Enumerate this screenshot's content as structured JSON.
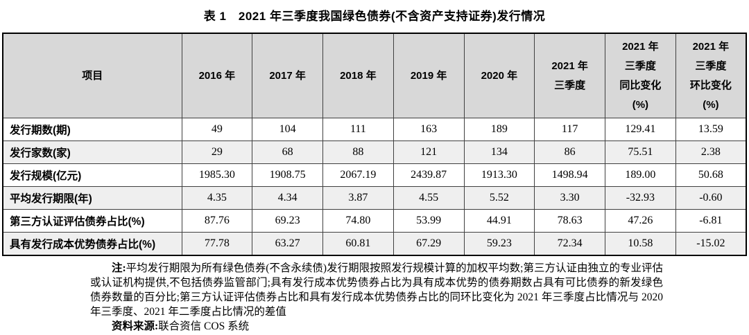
{
  "title": "表 1　2021 年三季度我国绿色债券(不含资产支持证券)发行情况",
  "table": {
    "columns": [
      [
        "项目"
      ],
      [
        "2016 年"
      ],
      [
        "2017 年"
      ],
      [
        "2018 年"
      ],
      [
        "2019 年"
      ],
      [
        "2020 年"
      ],
      [
        "2021 年",
        "三季度"
      ],
      [
        "2021 年",
        "三季度",
        "同比变化",
        "(%)"
      ],
      [
        "2021 年",
        "三季度",
        "环比变化",
        "(%)"
      ]
    ],
    "rows": [
      {
        "label": "发行期数(期)",
        "values": [
          "49",
          "104",
          "111",
          "163",
          "189",
          "117",
          "129.41",
          "13.59"
        ]
      },
      {
        "label": "发行家数(家)",
        "values": [
          "29",
          "68",
          "88",
          "121",
          "134",
          "86",
          "75.51",
          "2.38"
        ]
      },
      {
        "label": "发行规模(亿元)",
        "values": [
          "1985.30",
          "1908.75",
          "2067.19",
          "2439.87",
          "1913.30",
          "1498.94",
          "189.00",
          "50.68"
        ]
      },
      {
        "label": "平均发行期限(年)",
        "values": [
          "4.35",
          "4.34",
          "3.87",
          "4.55",
          "5.52",
          "3.30",
          "-32.93",
          "-0.60"
        ]
      },
      {
        "label": "第三方认证评估债券占比(%)",
        "values": [
          "87.76",
          "69.23",
          "74.80",
          "53.99",
          "44.91",
          "78.63",
          "47.26",
          "-6.81"
        ]
      },
      {
        "label": "具有发行成本优势债券占比(%)",
        "values": [
          "77.78",
          "63.27",
          "60.81",
          "67.29",
          "59.23",
          "72.34",
          "10.58",
          "-15.02"
        ]
      }
    ]
  },
  "notes": {
    "label": "注:",
    "text": "平均发行期限为所有绿色债券(不含永续债)发行期限按照发行规模计算的加权平均数;第三方认证由独立的专业评估或认证机构提供,不包括债券监管部门;具有发行成本优势债券占比为具有成本优势的债券期数占具有可比债券的新发绿色债券数量的百分比;第三方认证评估债券占比和具有发行成本优势债券占比的同环比变化为 2021 年三季度占比情况与 2020 年三季度、2021 年二季度占比情况的差值"
  },
  "source": {
    "label": "资料来源:",
    "text": "联合资信 COS 系统"
  },
  "colors": {
    "header_bg": "#d8d8d8",
    "stripe_bg": "#efefef",
    "border": "#3f3f3f",
    "outer_border": "#000000"
  }
}
